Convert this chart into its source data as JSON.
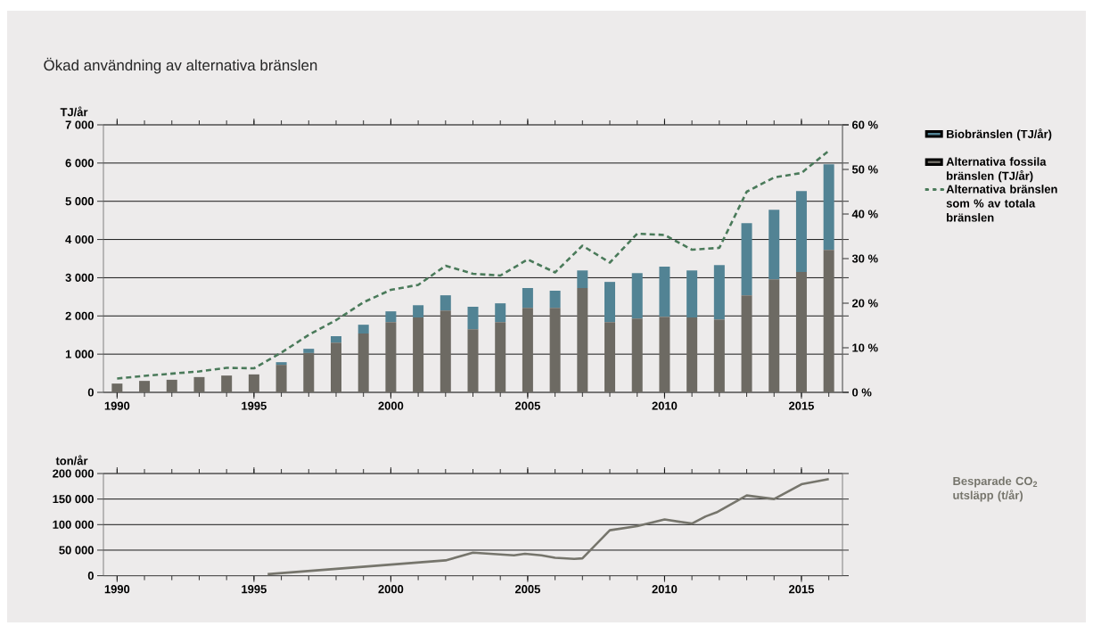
{
  "chart_data": [
    {
      "type": "bar",
      "title": "Ökad användning av alternativa bränslen",
      "ylabel": "TJ/år",
      "stacked": true,
      "grid": "y",
      "legend": "right",
      "x": [
        1990,
        1991,
        1992,
        1993,
        1994,
        1995,
        1996,
        1997,
        1998,
        1999,
        2000,
        2001,
        2002,
        2003,
        2004,
        2005,
        2006,
        2007,
        2008,
        2009,
        2010,
        2011,
        2012,
        2013,
        2014,
        2015,
        2016
      ],
      "xlim": [
        1989.5,
        2016.5
      ],
      "xticks": [
        1990,
        1995,
        2000,
        2005,
        2010,
        2015
      ],
      "ylim": [
        0,
        7000
      ],
      "yticks": [
        0,
        {
          "value": 1000,
          "label": "1 000"
        },
        {
          "value": 2000,
          "label": "2 000"
        },
        {
          "value": 3000,
          "label": "3 000"
        },
        {
          "value": 4000,
          "label": "4 000"
        },
        {
          "value": 5000,
          "label": "5 000"
        },
        {
          "value": 6000,
          "label": "6 000"
        },
        {
          "value": 7000,
          "label": "7 000"
        }
      ],
      "y2lim": [
        0,
        60
      ],
      "y2ticks": [
        {
          "value": 0,
          "label": "0 %"
        },
        {
          "value": 10,
          "label": "10 %"
        },
        {
          "value": 20,
          "label": "20 %"
        },
        {
          "value": 30,
          "label": "30 %"
        },
        {
          "value": 40,
          "label": "40 %"
        },
        {
          "value": 50,
          "label": "50 %"
        },
        {
          "value": 60,
          "label": "60 %"
        }
      ],
      "series": [
        {
          "name": "Alternativa fossila bränslen (TJ/år)",
          "color": "#6d6a63",
          "values": [
            230,
            300,
            330,
            400,
            440,
            470,
            720,
            1030,
            1300,
            1540,
            1840,
            1960,
            2140,
            1650,
            1840,
            2210,
            2210,
            2730,
            1840,
            1930,
            1980,
            1960,
            1910,
            2540,
            2960,
            3150,
            3730
          ]
        },
        {
          "name": "Biobränslen (TJ/år)",
          "color": "#528394",
          "values": [
            0,
            0,
            0,
            0,
            0,
            0,
            70,
            110,
            170,
            230,
            280,
            320,
            400,
            590,
            490,
            520,
            450,
            460,
            1050,
            1190,
            1310,
            1230,
            1420,
            1890,
            1820,
            2120,
            2240
          ]
        },
        {
          "name": "Alternativa bränslen som % av totala bränslen",
          "type": "line",
          "axis": "y2",
          "color": "#4a7a5a",
          "line_style": "dashed",
          "marker": "none",
          "values": [
            3.1,
            3.7,
            4.2,
            4.7,
            5.5,
            5.4,
            8.9,
            12.9,
            16.2,
            20.2,
            23,
            24.1,
            28.4,
            26.6,
            26.2,
            29.8,
            26.9,
            32.9,
            29.1,
            35.6,
            35.3,
            32,
            32.4,
            45,
            48.2,
            49.2,
            54.2
          ]
        }
      ]
    },
    {
      "type": "line",
      "ylabel": "ton/år",
      "grid": "y",
      "marker": "none",
      "line_style": "solid",
      "x": [
        1995.5,
        2002,
        2003,
        2004.5,
        2004.9,
        2005.5,
        2006,
        2006.7,
        2007,
        2008,
        2009,
        2010,
        2011,
        2011.5,
        2011.9,
        2013,
        2014,
        2015,
        2016
      ],
      "xlim": [
        1989.5,
        2016.5
      ],
      "xticks": [
        1990,
        1995,
        2000,
        2005,
        2010,
        2015
      ],
      "ylim": [
        0,
        200000
      ],
      "yticks": [
        0,
        {
          "value": 50000,
          "label": "50 000"
        },
        {
          "value": 100000,
          "label": "100 000"
        },
        {
          "value": 150000,
          "label": "150 000"
        },
        {
          "value": 200000,
          "label": "200 000"
        }
      ],
      "series": [
        {
          "name": "Besparade CO$_{2}$ utsläpp (t/år)",
          "color": "#76756c",
          "values": [
            3000,
            30000,
            45000,
            40000,
            43000,
            40000,
            35000,
            33000,
            34000,
            89000,
            97000,
            110000,
            102000,
            116000,
            124000,
            157000,
            150000,
            179000,
            189000
          ]
        }
      ]
    }
  ]
}
